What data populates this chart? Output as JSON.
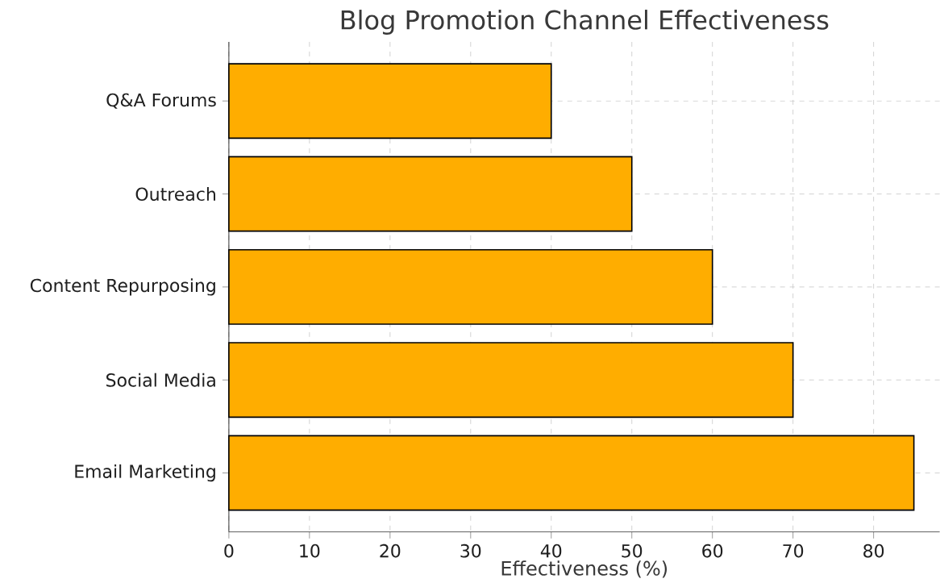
{
  "chart_data": {
    "type": "bar",
    "orientation": "horizontal",
    "title": "Blog Promotion Channel Effectiveness",
    "xlabel": "Effectiveness (%)",
    "categories": [
      "Q&A Forums",
      "Outreach",
      "Content Repurposing",
      "Social Media",
      "Email Marketing"
    ],
    "values": [
      40,
      50,
      60,
      70,
      85
    ],
    "color": "#ffad00",
    "xlim": [
      0,
      88.2
    ],
    "xticks": [
      0,
      10,
      20,
      30,
      40,
      50,
      60,
      70,
      80
    ],
    "grid": true
  }
}
